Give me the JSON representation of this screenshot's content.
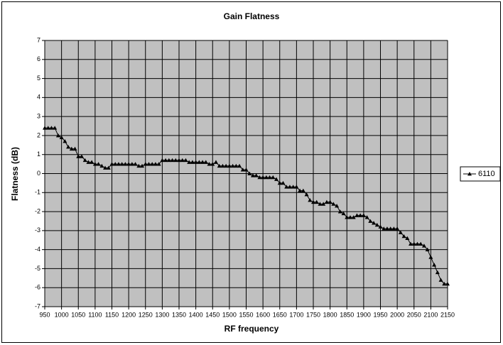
{
  "chart_data": {
    "type": "line",
    "title": "Gain Flatness",
    "x_label": "RF frequency",
    "y_label": "Flatness (dB)",
    "xlim": [
      950,
      2150
    ],
    "xticks": [
      950,
      1000,
      1050,
      1100,
      1150,
      1200,
      1250,
      1300,
      1350,
      1400,
      1450,
      1500,
      1550,
      1600,
      1650,
      1700,
      1750,
      1800,
      1850,
      1900,
      1950,
      2000,
      2050,
      2100,
      2150
    ],
    "ylim": [
      -7,
      7
    ],
    "yticks": [
      -7,
      -6,
      -5,
      -4,
      -3,
      -2,
      -1,
      0,
      1,
      2,
      3,
      4,
      5,
      6,
      7
    ],
    "grid": true,
    "legend": "right",
    "x": [
      950,
      960,
      970,
      980,
      990,
      1000,
      1010,
      1020,
      1030,
      1040,
      1050,
      1060,
      1070,
      1080,
      1090,
      1100,
      1110,
      1120,
      1130,
      1140,
      1150,
      1160,
      1170,
      1180,
      1190,
      1200,
      1210,
      1220,
      1230,
      1240,
      1250,
      1260,
      1270,
      1280,
      1290,
      1300,
      1310,
      1320,
      1330,
      1340,
      1350,
      1360,
      1370,
      1380,
      1390,
      1400,
      1410,
      1420,
      1430,
      1440,
      1450,
      1460,
      1470,
      1480,
      1490,
      1500,
      1510,
      1520,
      1530,
      1540,
      1550,
      1560,
      1570,
      1580,
      1590,
      1600,
      1610,
      1620,
      1630,
      1640,
      1650,
      1660,
      1670,
      1680,
      1690,
      1700,
      1710,
      1720,
      1730,
      1740,
      1750,
      1760,
      1770,
      1780,
      1790,
      1800,
      1810,
      1820,
      1830,
      1840,
      1850,
      1860,
      1870,
      1880,
      1890,
      1900,
      1910,
      1920,
      1930,
      1940,
      1950,
      1960,
      1970,
      1980,
      1990,
      2000,
      2010,
      2020,
      2030,
      2040,
      2050,
      2060,
      2070,
      2080,
      2090,
      2100,
      2110,
      2120,
      2130,
      2140,
      2150
    ],
    "series": [
      {
        "name": "6110",
        "color": "#000000",
        "values": [
          2.4,
          2.4,
          2.4,
          2.4,
          2.0,
          1.9,
          1.7,
          1.4,
          1.3,
          1.3,
          0.9,
          0.9,
          0.7,
          0.6,
          0.6,
          0.5,
          0.5,
          0.4,
          0.3,
          0.3,
          0.5,
          0.5,
          0.5,
          0.5,
          0.5,
          0.5,
          0.5,
          0.5,
          0.4,
          0.4,
          0.5,
          0.5,
          0.5,
          0.5,
          0.5,
          0.7,
          0.7,
          0.7,
          0.7,
          0.7,
          0.7,
          0.7,
          0.7,
          0.6,
          0.6,
          0.6,
          0.6,
          0.6,
          0.6,
          0.5,
          0.5,
          0.6,
          0.4,
          0.4,
          0.4,
          0.4,
          0.4,
          0.4,
          0.4,
          0.2,
          0.2,
          0.0,
          -0.1,
          -0.1,
          -0.2,
          -0.2,
          -0.2,
          -0.2,
          -0.2,
          -0.3,
          -0.5,
          -0.5,
          -0.7,
          -0.7,
          -0.7,
          -0.7,
          -0.9,
          -0.9,
          -1.1,
          -1.4,
          -1.5,
          -1.5,
          -1.6,
          -1.6,
          -1.5,
          -1.5,
          -1.6,
          -1.7,
          -2.0,
          -2.1,
          -2.3,
          -2.3,
          -2.3,
          -2.2,
          -2.2,
          -2.2,
          -2.3,
          -2.5,
          -2.6,
          -2.7,
          -2.8,
          -2.9,
          -2.9,
          -2.9,
          -2.9,
          -2.9,
          -3.1,
          -3.3,
          -3.4,
          -3.7,
          -3.7,
          -3.7,
          -3.7,
          -3.8,
          -4.0,
          -4.4,
          -4.8,
          -5.2,
          -5.6,
          -5.8,
          -5.8
        ]
      }
    ]
  }
}
